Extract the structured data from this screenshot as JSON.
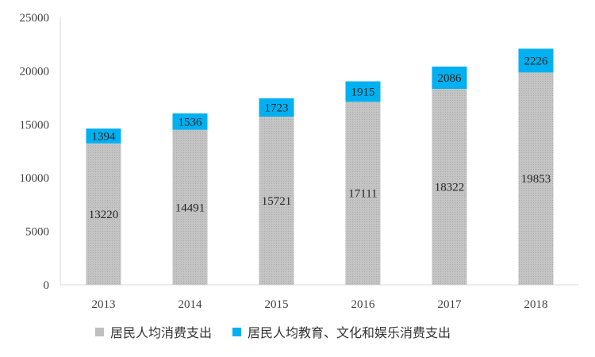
{
  "chart_data": {
    "type": "bar",
    "stacked": true,
    "categories": [
      "2013",
      "2014",
      "2015",
      "2016",
      "2017",
      "2018"
    ],
    "series": [
      {
        "name": "居民人均消费支出",
        "values": [
          13220,
          14491,
          15721,
          17111,
          18322,
          19853
        ],
        "color": "#bfbfbf"
      },
      {
        "name": "居民人均教育、文化和娱乐消费支出",
        "values": [
          1394,
          1536,
          1723,
          1915,
          2086,
          2226
        ],
        "color": "#00b0f0"
      }
    ],
    "y_ticks": [
      "0",
      "5000",
      "10000",
      "15000",
      "20000",
      "25000"
    ],
    "ylim": [
      0,
      25000
    ],
    "grid": false,
    "legend_position": "bottom"
  }
}
